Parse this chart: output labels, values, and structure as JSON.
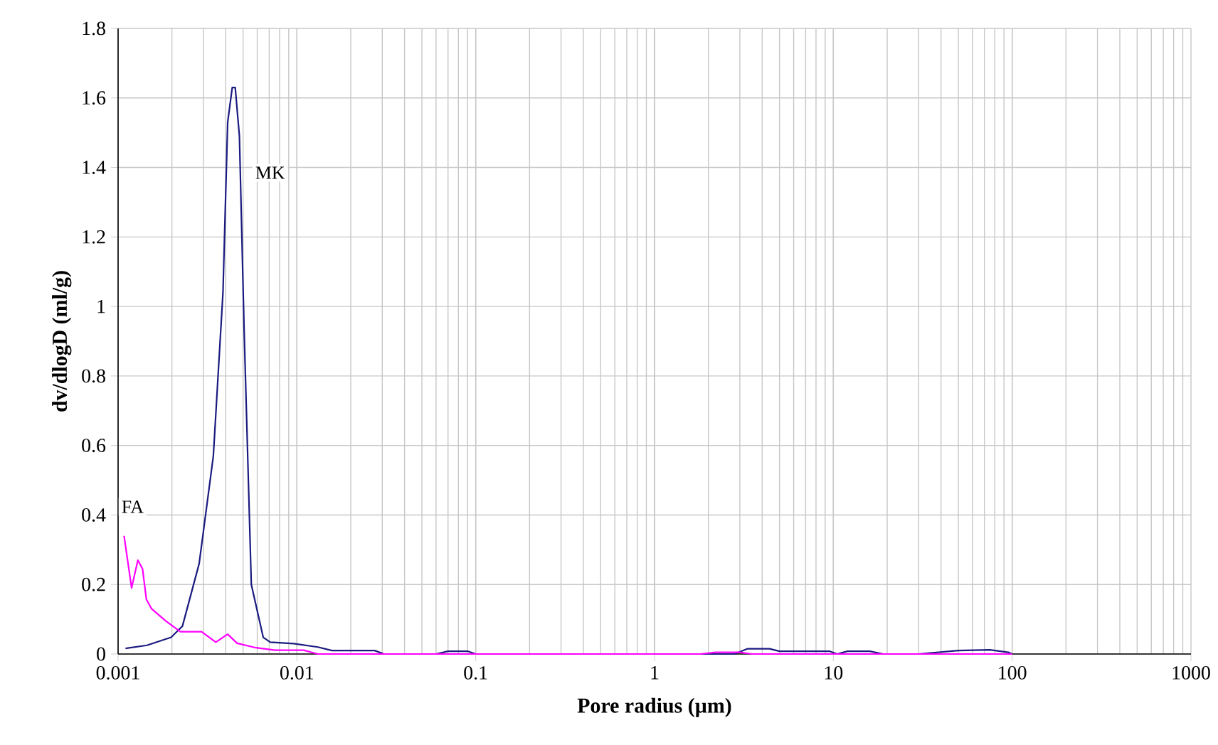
{
  "chart_data": {
    "type": "line",
    "xlabel": "Pore radius (µm)",
    "ylabel": "dv/dlogD (ml/g)",
    "log": "x",
    "grid": true,
    "legend": false,
    "marker": "none",
    "line_style": "solid",
    "xlim": [
      0.001,
      1000
    ],
    "xticks": [
      0.001,
      0.01,
      0.1,
      1,
      10,
      100,
      1000
    ],
    "ylim": [
      0,
      1.8
    ],
    "yticks": [
      0,
      0.2,
      0.4,
      0.6,
      0.8,
      1,
      1.2,
      1.4,
      1.6,
      1.8
    ],
    "series": [
      {
        "name": "MK",
        "color": "#1a1a80",
        "x": [
          0.0011,
          0.00145,
          0.00198,
          0.00229,
          0.00284,
          0.00341,
          0.00386,
          0.0041,
          0.00435,
          0.00452,
          0.00477,
          0.00507,
          0.00556,
          0.00648,
          0.0071,
          0.0096,
          0.0131,
          0.0157,
          0.0272,
          0.0307,
          0.06,
          0.07,
          0.09,
          0.1,
          2.8,
          3.3,
          4.4,
          5,
          9.5,
          10.5,
          12,
          16,
          19,
          30,
          50,
          75,
          95,
          100
        ],
        "values": [
          0.016,
          0.025,
          0.048,
          0.08,
          0.26,
          0.57,
          1.04,
          1.53,
          1.63,
          1.63,
          1.49,
          0.93,
          0.2,
          0.048,
          0.034,
          0.03,
          0.02,
          0.01,
          0.01,
          0.0,
          0.0,
          0.008,
          0.008,
          0.0,
          0.0,
          0.015,
          0.015,
          0.008,
          0.008,
          0.0,
          0.008,
          0.008,
          0.0,
          0.0,
          0.01,
          0.012,
          0.005,
          0.0
        ]
      },
      {
        "name": "FA",
        "color": "#ff00ff",
        "x": [
          0.00108,
          0.00119,
          0.00129,
          0.00137,
          0.00144,
          0.00154,
          0.00185,
          0.00223,
          0.00293,
          0.00352,
          0.0041,
          0.00463,
          0.00591,
          0.00754,
          0.0109,
          0.0131,
          1.8,
          2.2,
          3,
          3.5,
          100
        ],
        "values": [
          0.34,
          0.19,
          0.27,
          0.245,
          0.157,
          0.13,
          0.095,
          0.064,
          0.064,
          0.034,
          0.057,
          0.031,
          0.018,
          0.011,
          0.011,
          0.0,
          0.0,
          0.005,
          0.005,
          0.0,
          0.0
        ]
      }
    ]
  }
}
